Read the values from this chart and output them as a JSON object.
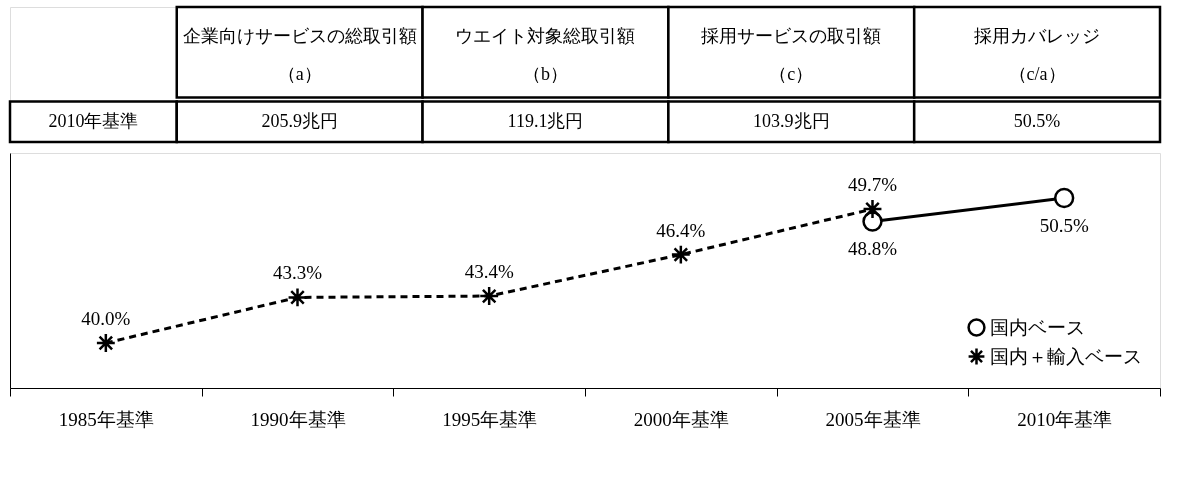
{
  "chart_data": [
    {
      "type": "other",
      "annotations": [
        "企業向けサービスの総取引額（a）",
        "ウエイト対象総取引額（b）",
        "採用サービスの取引額（c）",
        "採用カバレッジ（c/a）",
        "2010年基準",
        "205.9兆円",
        "119.1兆円",
        "103.9兆円",
        "50.5%"
      ]
    },
    {
      "type": "line",
      "categories": [
        "1985年基準",
        "1990年基準",
        "1995年基準",
        "2000年基準",
        "2005年基準",
        "2010年基準"
      ],
      "series": [
        {
          "name": "国内ベース",
          "color": "#000000",
          "marker": "circle",
          "line_style": "solid",
          "values": [
            null,
            null,
            null,
            null,
            48.8,
            50.5
          ],
          "value_labels": [
            null,
            null,
            null,
            null,
            "48.8%",
            "50.5%"
          ]
        },
        {
          "name": "国内＋輸入ベース",
          "color": "#000000",
          "marker": "cross",
          "line_style": "dashed",
          "values": [
            40.0,
            43.3,
            43.4,
            46.4,
            49.7,
            null
          ],
          "value_labels": [
            "40.0%",
            "43.3%",
            "43.4%",
            "46.4%",
            "49.7%",
            null
          ]
        }
      ],
      "legend": "bottom right",
      "grid": false
    }
  ]
}
